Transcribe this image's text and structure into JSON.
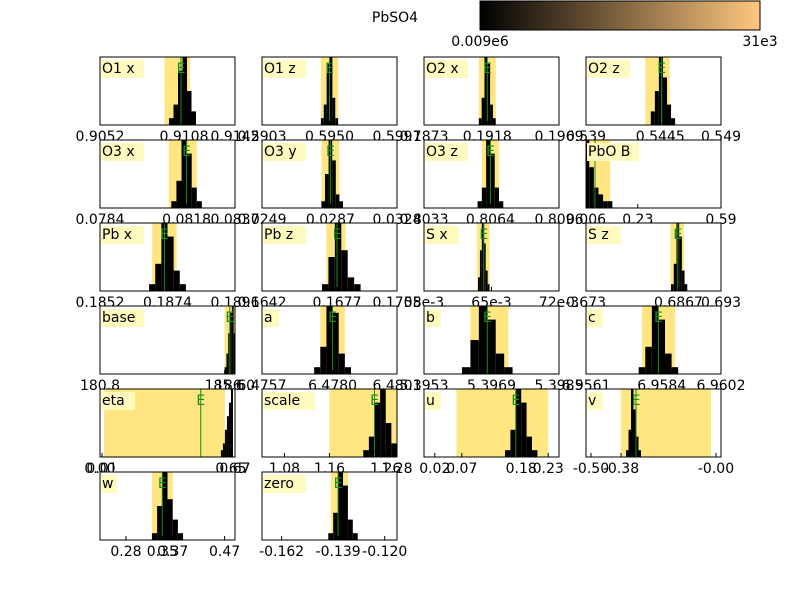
{
  "chart_data": {
    "type": "histogram-grid",
    "title": "PbSO4",
    "marker_label": "E",
    "ylim": [
      0,
      10
    ],
    "bar_color": "#000000",
    "band_color": "#ffe680",
    "label_box_color": "#fffac0",
    "marker_color": "#1a8c1a",
    "colorbar": {
      "labels": [
        "0.009e6",
        "31e3"
      ],
      "colors": [
        "#000000",
        "#ffc77f"
      ]
    },
    "panels": [
      {
        "title": "O1 x",
        "xlim": [
          0.9052,
          0.9142
        ],
        "xticks": [
          {
            "value": 0.9052,
            "label": "0.9052"
          },
          {
            "value": 0.9108,
            "label": "0.9108"
          },
          {
            "value": 0.9142,
            "label": "0.9142"
          }
        ],
        "band": [
          0.9095,
          0.9112
        ],
        "mean": 0.9106,
        "bins": [
          0.9098,
          0.9101,
          0.9104,
          0.9107,
          0.911,
          0.9113,
          0.9116
        ],
        "counts": [
          1,
          3,
          8,
          10,
          5,
          2
        ]
      },
      {
        "title": "O1 z",
        "xlim": [
          0.5903,
          0.5997
        ],
        "xticks": [
          {
            "value": 0.5903,
            "label": "0.5903"
          },
          {
            "value": 0.595,
            "label": "0.5950"
          },
          {
            "value": 0.5997,
            "label": "0.5997"
          }
        ],
        "band": [
          0.5944,
          0.5956
        ],
        "mean": 0.595,
        "bins": [
          0.5944,
          0.5946,
          0.5948,
          0.595,
          0.5952,
          0.5954,
          0.5956
        ],
        "counts": [
          1,
          3,
          9,
          10,
          4,
          1
        ]
      },
      {
        "title": "O2 x",
        "xlim": [
          0.1873,
          0.1969
        ],
        "xticks": [
          {
            "value": 0.1873,
            "label": "0.1873"
          },
          {
            "value": 0.1918,
            "label": "0.1918"
          },
          {
            "value": 0.1969,
            "label": "0.1969"
          }
        ],
        "band": [
          0.1912,
          0.1924
        ],
        "mean": 0.1918,
        "bins": [
          0.1912,
          0.1914,
          0.1916,
          0.1918,
          0.192,
          0.1922,
          0.1924
        ],
        "counts": [
          1,
          4,
          10,
          9,
          3,
          1
        ]
      },
      {
        "title": "O2 z",
        "xlim": [
          0.539,
          0.549
        ],
        "xticks": [
          {
            "value": 0.539,
            "label": "0.539"
          },
          {
            "value": 0.5445,
            "label": "0.5445"
          },
          {
            "value": 0.549,
            "label": "0.549"
          }
        ],
        "band": [
          0.5434,
          0.5452
        ],
        "mean": 0.5446,
        "bins": [
          0.5438,
          0.5441,
          0.5444,
          0.5447,
          0.545,
          0.5453,
          0.5456
        ],
        "counts": [
          2,
          5,
          10,
          7,
          3,
          1
        ]
      },
      {
        "title": "O3 x",
        "xlim": [
          0.0784,
          0.0837
        ],
        "xticks": [
          {
            "value": 0.0784,
            "label": "0.0784"
          },
          {
            "value": 0.0818,
            "label": "0.0818"
          },
          {
            "value": 0.0837,
            "label": "0.0837"
          }
        ],
        "band": [
          0.0811,
          0.0822
        ],
        "mean": 0.0818,
        "bins": [
          0.0812,
          0.0814,
          0.0816,
          0.0818,
          0.082,
          0.0822,
          0.0824
        ],
        "counts": [
          1,
          4,
          10,
          8,
          3,
          1
        ]
      },
      {
        "title": "O3 y",
        "xlim": [
          0.0249,
          0.0324
        ],
        "xticks": [
          {
            "value": 0.0249,
            "label": "0.0249"
          },
          {
            "value": 0.0287,
            "label": "0.0287"
          },
          {
            "value": 0.0324,
            "label": "0.0324"
          }
        ],
        "band": [
          0.0282,
          0.0292
        ],
        "mean": 0.0287,
        "bins": [
          0.0282,
          0.0284,
          0.0286,
          0.0288,
          0.029,
          0.0292,
          0.0294
        ],
        "counts": [
          1,
          5,
          10,
          7,
          2,
          1
        ]
      },
      {
        "title": "O3 z",
        "xlim": [
          0.8033,
          0.8096
        ],
        "xticks": [
          {
            "value": 0.8033,
            "label": "0.8033"
          },
          {
            "value": 0.8064,
            "label": "0.8064"
          },
          {
            "value": 0.8096,
            "label": "0.8096"
          }
        ],
        "band": [
          0.806,
          0.8068
        ],
        "mean": 0.8064,
        "bins": [
          0.8058,
          0.806,
          0.8062,
          0.8064,
          0.8066,
          0.8068,
          0.807
        ],
        "counts": [
          1,
          3,
          10,
          8,
          3,
          1
        ]
      },
      {
        "title": "PbO B",
        "xlim": [
          0.006,
          0.59
        ],
        "xticks": [
          {
            "value": 0.006,
            "label": "0.006"
          },
          {
            "value": 0.23,
            "label": "0.23"
          },
          {
            "value": 0.59,
            "label": "0.59"
          }
        ],
        "band": [
          0.01,
          0.11
        ],
        "mean": 0.045,
        "bins": [
          0.006,
          0.02,
          0.04,
          0.06,
          0.08,
          0.1,
          0.12
        ],
        "counts": [
          10,
          6,
          3,
          2,
          1,
          1
        ]
      },
      {
        "title": "Pb x",
        "xlim": [
          0.1852,
          0.1896
        ],
        "xticks": [
          {
            "value": 0.1852,
            "label": "0.1852"
          },
          {
            "value": 0.1874,
            "label": "0.1874"
          },
          {
            "value": 0.1896,
            "label": "0.1896"
          }
        ],
        "band": [
          0.1869,
          0.1877
        ],
        "mean": 0.1873,
        "bins": [
          0.1868,
          0.187,
          0.1872,
          0.1874,
          0.1876,
          0.1878,
          0.188
        ],
        "counts": [
          1,
          4,
          10,
          8,
          3,
          1
        ]
      },
      {
        "title": "Pb z",
        "xlim": [
          0.1642,
          0.1705
        ],
        "xticks": [
          {
            "value": 0.1642,
            "label": "0.1642"
          },
          {
            "value": 0.1677,
            "label": "0.1677"
          },
          {
            "value": 0.1705,
            "label": "0.1705"
          }
        ],
        "band": [
          0.1672,
          0.1681
        ],
        "mean": 0.1677,
        "bins": [
          0.167,
          0.1673,
          0.1676,
          0.1679,
          0.1682,
          0.1685,
          0.1688
        ],
        "counts": [
          1,
          5,
          10,
          6,
          2,
          1
        ]
      },
      {
        "title": "S x",
        "xlim": [
          0.058,
          0.072
        ],
        "xticks": [
          {
            "value": 0.058,
            "label": "58e-3"
          },
          {
            "value": 0.065,
            "label": "65e-3"
          },
          {
            "value": 0.072,
            "label": "72e-3"
          }
        ],
        "band": [
          0.0635,
          0.0648
        ],
        "mean": 0.0642,
        "bins": [
          0.0636,
          0.0638,
          0.064,
          0.0642,
          0.0644,
          0.0646,
          0.0648
        ],
        "counts": [
          2,
          6,
          10,
          7,
          3,
          1
        ]
      },
      {
        "title": "S z",
        "xlim": [
          0.673,
          0.693
        ],
        "xticks": [
          {
            "value": 0.673,
            "label": "0.673"
          },
          {
            "value": 0.6867,
            "label": "0.6867"
          },
          {
            "value": 0.693,
            "label": "0.693"
          }
        ],
        "band": [
          0.6855,
          0.6875
        ],
        "mean": 0.6866,
        "bins": [
          0.6856,
          0.686,
          0.6864,
          0.6868,
          0.6872,
          0.6876,
          0.688
        ],
        "counts": [
          1,
          4,
          10,
          8,
          3,
          1
        ]
      },
      {
        "title": "base",
        "xlim": [
          180.8,
          186.0
        ],
        "xticks": [
          {
            "value": 180.8,
            "label": "180.8"
          },
          {
            "value": 185.6,
            "label": "185.6"
          },
          {
            "value": 186.0,
            "label": "186.0"
          }
        ],
        "band": [
          185.6,
          186.0
        ],
        "mean": 185.8,
        "bins": [
          185.6,
          185.67,
          185.74,
          185.81,
          185.88,
          185.95,
          186.0
        ],
        "counts": [
          1,
          3,
          6,
          9,
          10,
          6
        ]
      },
      {
        "title": "a",
        "xlim": [
          6.4757,
          6.4801
        ],
        "xticks": [
          {
            "value": 6.4757,
            "label": "6.4757"
          },
          {
            "value": 6.478,
            "label": "6.4780"
          },
          {
            "value": 6.4801,
            "label": "6.4801"
          }
        ],
        "band": [
          6.4776,
          6.4784
        ],
        "mean": 6.478,
        "bins": [
          6.4774,
          6.4776,
          6.4778,
          6.478,
          6.4782,
          6.4784,
          6.4786
        ],
        "counts": [
          1,
          4,
          10,
          9,
          3,
          1
        ]
      },
      {
        "title": "b",
        "xlim": [
          5.3953,
          5.3985
        ],
        "xticks": [
          {
            "value": 5.3953,
            "label": "5.3953"
          },
          {
            "value": 5.3969,
            "label": "5.3969"
          },
          {
            "value": 5.3985,
            "label": "5.3985"
          }
        ],
        "band": [
          5.3964,
          5.3973
        ],
        "mean": 5.3968,
        "bins": [
          5.3962,
          5.3964,
          5.3966,
          5.3968,
          5.397,
          5.3972,
          5.3974
        ],
        "counts": [
          1,
          5,
          10,
          8,
          3,
          1
        ]
      },
      {
        "title": "c",
        "xlim": [
          6.9561,
          6.9602
        ],
        "xticks": [
          {
            "value": 6.9561,
            "label": "6.9561"
          },
          {
            "value": 6.9584,
            "label": "6.9584"
          },
          {
            "value": 6.9602,
            "label": "6.9602"
          }
        ],
        "band": [
          6.9578,
          6.9588
        ],
        "mean": 6.9583,
        "bins": [
          6.9577,
          6.9579,
          6.9581,
          6.9583,
          6.9585,
          6.9587,
          6.9589
        ],
        "counts": [
          1,
          4,
          10,
          8,
          3,
          1
        ]
      },
      {
        "title": "eta",
        "xlim": [
          0.0,
          0.67
        ],
        "xticks": [
          {
            "value": 0.0,
            "label": "0.00"
          },
          {
            "value": 0.01,
            "label": "0.01"
          },
          {
            "value": 0.65,
            "label": "0.65"
          },
          {
            "value": 0.67,
            "label": "0.67"
          }
        ],
        "band": [
          0.02,
          0.62
        ],
        "mean": 0.5,
        "bins": [
          0.6,
          0.61,
          0.62,
          0.63,
          0.64,
          0.65,
          0.66
        ],
        "counts": [
          1,
          2,
          4,
          6,
          8,
          10
        ]
      },
      {
        "title": "scale",
        "xlim": [
          1.04,
          1.28
        ],
        "xticks": [
          {
            "value": 1.08,
            "label": "1.08"
          },
          {
            "value": 1.16,
            "label": "1.16"
          },
          {
            "value": 1.26,
            "label": "1.26"
          },
          {
            "value": 1.28,
            "label": "1.28"
          }
        ],
        "band": [
          1.16,
          1.28
        ],
        "mean": 1.24,
        "bins": [
          1.22,
          1.23,
          1.24,
          1.25,
          1.26,
          1.27,
          1.28
        ],
        "counts": [
          1,
          3,
          8,
          10,
          5,
          2
        ]
      },
      {
        "title": "u",
        "xlim": [
          0.0,
          0.25
        ],
        "xticks": [
          {
            "value": 0.02,
            "label": "0.02"
          },
          {
            "value": 0.07,
            "label": "0.07"
          },
          {
            "value": 0.18,
            "label": "0.18"
          },
          {
            "value": 0.23,
            "label": "0.23"
          }
        ],
        "band": [
          0.06,
          0.23
        ],
        "mean": 0.17,
        "bins": [
          0.15,
          0.16,
          0.17,
          0.18,
          0.19,
          0.2,
          0.21
        ],
        "counts": [
          1,
          4,
          10,
          8,
          3,
          1
        ]
      },
      {
        "title": "v",
        "xlim": [
          -0.52,
          0.02
        ],
        "xticks": [
          {
            "value": -0.5,
            "label": "-0.50"
          },
          {
            "value": -0.38,
            "label": "-0.38"
          },
          {
            "value": 0.0,
            "label": "-0.00"
          }
        ],
        "band": [
          -0.38,
          -0.02
        ],
        "mean": -0.32,
        "bins": [
          -0.36,
          -0.35,
          -0.34,
          -0.33,
          -0.32,
          -0.31,
          -0.3
        ],
        "counts": [
          1,
          4,
          10,
          7,
          3,
          1
        ]
      },
      {
        "title": "w",
        "xlim": [
          0.23,
          0.49
        ],
        "xticks": [
          {
            "value": 0.28,
            "label": "0.28"
          },
          {
            "value": 0.35,
            "label": "0.35"
          },
          {
            "value": 0.37,
            "label": "0.37"
          },
          {
            "value": 0.47,
            "label": "0.47"
          }
        ],
        "band": [
          0.33,
          0.37
        ],
        "mean": 0.35,
        "bins": [
          0.33,
          0.34,
          0.35,
          0.36,
          0.37,
          0.38,
          0.39
        ],
        "counts": [
          1,
          5,
          10,
          6,
          3,
          1
        ]
      },
      {
        "title": "zero",
        "xlim": [
          -0.17,
          -0.115
        ],
        "xticks": [
          {
            "value": -0.162,
            "label": "-0.162"
          },
          {
            "value": -0.139,
            "label": "-0.139"
          },
          {
            "value": -0.12,
            "label": "-0.120"
          }
        ],
        "band": [
          -0.142,
          -0.135
        ],
        "mean": -0.139,
        "bins": [
          -0.143,
          -0.141,
          -0.139,
          -0.137,
          -0.135,
          -0.133,
          -0.131
        ],
        "counts": [
          1,
          4,
          10,
          8,
          3,
          1
        ]
      }
    ]
  }
}
